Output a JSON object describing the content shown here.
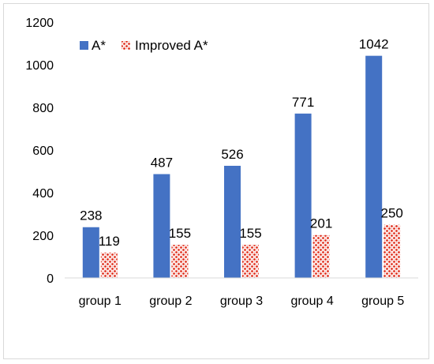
{
  "chart_data": {
    "type": "bar",
    "categories": [
      "group 1",
      "group 2",
      "group 3",
      "group 4",
      "group 5"
    ],
    "series": [
      {
        "name": "A*",
        "values": [
          238,
          487,
          526,
          771,
          1042
        ],
        "color": "#4472c4",
        "pattern": "solid"
      },
      {
        "name": "Improved A*",
        "values": [
          119,
          155,
          155,
          201,
          250
        ],
        "color": "#e0301e",
        "pattern": "crosshatch-dots"
      }
    ],
    "title": "",
    "xlabel": "",
    "ylabel": "",
    "ylim": [
      0,
      1200
    ],
    "yticks": [
      0,
      200,
      400,
      600,
      800,
      1000,
      1200
    ],
    "grid": false,
    "legend_position": "top-left",
    "data_labels": true
  }
}
